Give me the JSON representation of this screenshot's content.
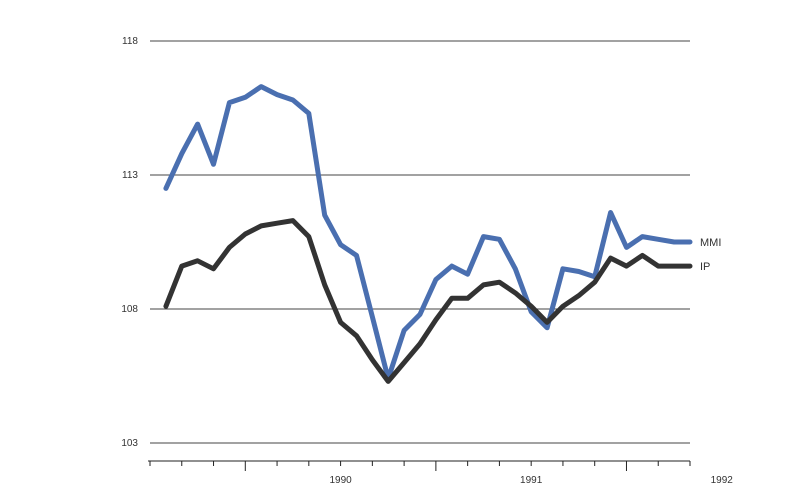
{
  "chart_data": {
    "type": "line",
    "title": "",
    "xlabel": "",
    "ylabel": "",
    "ylim": [
      103,
      118
    ],
    "yticks": [
      103,
      108,
      113,
      118
    ],
    "grid": true,
    "x_start": "1989-07",
    "x_end": "1992-05",
    "x_year_labels": [
      {
        "label": "1990",
        "month": "1990-07"
      },
      {
        "label": "1991",
        "month": "1991-07"
      },
      {
        "label": "1992",
        "month": "1992-07"
      }
    ],
    "series": [
      {
        "name": "MMI",
        "color": "#4a6fb0",
        "x": [
          "1989-08",
          "1989-09",
          "1989-10",
          "1989-11",
          "1989-12",
          "1990-01",
          "1990-02",
          "1990-03",
          "1990-04",
          "1990-05",
          "1990-06",
          "1990-07",
          "1990-08",
          "1990-09",
          "1990-10",
          "1990-11",
          "1990-12",
          "1991-01",
          "1991-02",
          "1991-03",
          "1991-04",
          "1991-05",
          "1991-06",
          "1991-07",
          "1991-08",
          "1991-09",
          "1991-10",
          "1991-11",
          "1991-12",
          "1992-01",
          "1992-02",
          "1992-03",
          "1992-04",
          "1992-05"
        ],
        "values": [
          112.5,
          113.8,
          114.9,
          113.4,
          115.7,
          115.9,
          116.3,
          116.0,
          115.8,
          115.3,
          111.5,
          110.4,
          110.0,
          107.7,
          105.4,
          107.2,
          107.8,
          109.1,
          109.6,
          109.3,
          110.7,
          110.6,
          109.5,
          107.9,
          107.3,
          109.5,
          109.4,
          109.2,
          111.6,
          110.3,
          110.7,
          110.6,
          110.5,
          110.5
        ]
      },
      {
        "name": "IP",
        "color": "#333333",
        "x": [
          "1989-08",
          "1989-09",
          "1989-10",
          "1989-11",
          "1989-12",
          "1990-01",
          "1990-02",
          "1990-03",
          "1990-04",
          "1990-05",
          "1990-06",
          "1990-07",
          "1990-08",
          "1990-09",
          "1990-10",
          "1990-11",
          "1990-12",
          "1991-01",
          "1991-02",
          "1991-03",
          "1991-04",
          "1991-05",
          "1991-06",
          "1991-07",
          "1991-08",
          "1991-09",
          "1991-10",
          "1991-11",
          "1991-12",
          "1992-01",
          "1992-02",
          "1992-03",
          "1992-04",
          "1992-05"
        ],
        "values": [
          108.1,
          109.6,
          109.8,
          109.5,
          110.3,
          110.8,
          111.1,
          111.2,
          111.3,
          110.7,
          108.9,
          107.5,
          107.0,
          106.1,
          105.3,
          106.0,
          106.7,
          107.6,
          108.4,
          108.4,
          108.9,
          109.0,
          108.6,
          108.1,
          107.5,
          108.1,
          108.5,
          109.0,
          109.9,
          109.6,
          110.0,
          109.6,
          109.6,
          109.6
        ]
      }
    ]
  }
}
